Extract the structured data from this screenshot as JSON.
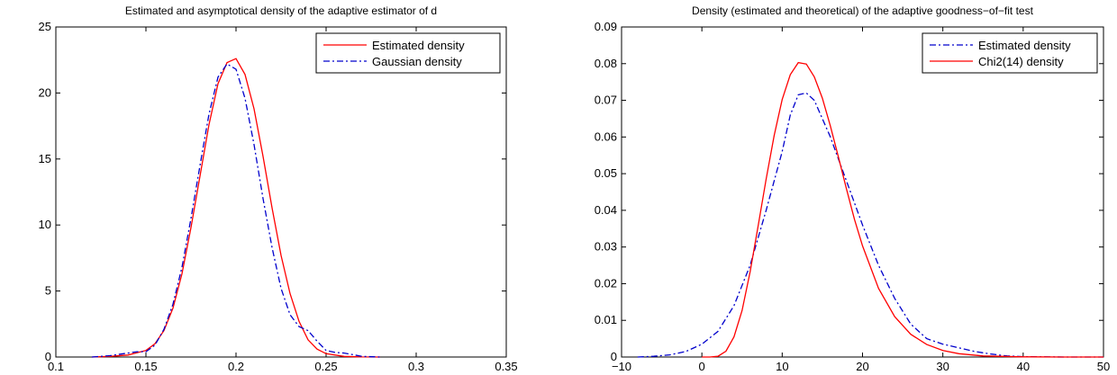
{
  "chart_data": [
    {
      "type": "line",
      "title": "Estimated and asymptotical density of the adaptive estimator of d",
      "xlabel": "",
      "ylabel": "",
      "xlim": [
        0.1,
        0.35
      ],
      "ylim": [
        0,
        25
      ],
      "xticks": [
        0.1,
        0.15,
        0.2,
        0.25,
        0.3,
        0.35
      ],
      "yticks": [
        0,
        5,
        10,
        15,
        20,
        25
      ],
      "xtick_labels": [
        "0.1",
        "0.15",
        "0.2",
        "0.25",
        "0.3",
        "0.35"
      ],
      "ytick_labels": [
        "0",
        "5",
        "10",
        "15",
        "20",
        "25"
      ],
      "grid": false,
      "legend_position": "top-right",
      "series": [
        {
          "name": "Estimated density",
          "color": "#ff0000",
          "dash": "solid",
          "x": [
            0.12,
            0.13,
            0.14,
            0.15,
            0.155,
            0.16,
            0.165,
            0.17,
            0.175,
            0.18,
            0.185,
            0.19,
            0.195,
            0.2,
            0.205,
            0.21,
            0.215,
            0.22,
            0.225,
            0.23,
            0.235,
            0.24,
            0.245,
            0.25,
            0.26,
            0.27,
            0.28
          ],
          "y": [
            0.0,
            0.05,
            0.15,
            0.5,
            1.0,
            2.0,
            3.7,
            6.3,
            9.8,
            13.7,
            17.6,
            20.7,
            22.3,
            22.6,
            21.4,
            18.8,
            15.2,
            11.3,
            7.7,
            4.8,
            2.7,
            1.3,
            0.6,
            0.25,
            0.05,
            0.01,
            0.0
          ]
        },
        {
          "name": "Gaussian density",
          "color": "#0000cc",
          "dash": "dashdot",
          "x": [
            0.12,
            0.13,
            0.14,
            0.145,
            0.15,
            0.155,
            0.16,
            0.165,
            0.17,
            0.175,
            0.18,
            0.185,
            0.19,
            0.195,
            0.2,
            0.205,
            0.21,
            0.215,
            0.22,
            0.225,
            0.23,
            0.235,
            0.24,
            0.245,
            0.25,
            0.255,
            0.26,
            0.27,
            0.28
          ],
          "y": [
            0.0,
            0.1,
            0.3,
            0.4,
            0.4,
            0.9,
            2.1,
            4.0,
            6.8,
            10.5,
            14.5,
            18.4,
            21.2,
            22.2,
            21.8,
            19.6,
            16.1,
            12.0,
            8.3,
            5.2,
            3.2,
            2.3,
            2.0,
            1.2,
            0.5,
            0.35,
            0.3,
            0.05,
            0.0
          ]
        }
      ]
    },
    {
      "type": "line",
      "title": "Density (estimated and theoretical) of the adaptive goodness−of−fit test",
      "xlabel": "",
      "ylabel": "",
      "xlim": [
        -10,
        50
      ],
      "ylim": [
        0,
        0.09
      ],
      "xticks": [
        -10,
        0,
        10,
        20,
        30,
        40,
        50
      ],
      "yticks": [
        0,
        0.01,
        0.02,
        0.03,
        0.04,
        0.05,
        0.06,
        0.07,
        0.08,
        0.09
      ],
      "xtick_labels": [
        "−10",
        "0",
        "10",
        "20",
        "30",
        "40",
        "50"
      ],
      "ytick_labels": [
        "0",
        "0.01",
        "0.02",
        "0.03",
        "0.04",
        "0.05",
        "0.06",
        "0.07",
        "0.08",
        "0.09"
      ],
      "grid": false,
      "legend_position": "top-right",
      "series": [
        {
          "name": "Estimated density",
          "color": "#0000cc",
          "dash": "dashdot",
          "x": [
            -8,
            -6,
            -4,
            -2,
            0,
            2,
            4,
            6,
            8,
            10,
            11,
            12,
            13,
            14,
            16,
            18,
            20,
            22,
            24,
            26,
            28,
            30,
            32,
            34,
            36,
            38,
            40,
            45,
            50
          ],
          "y": [
            0.0,
            0.0002,
            0.0006,
            0.0015,
            0.0035,
            0.007,
            0.014,
            0.025,
            0.04,
            0.056,
            0.066,
            0.0715,
            0.072,
            0.07,
            0.06,
            0.048,
            0.036,
            0.025,
            0.016,
            0.009,
            0.005,
            0.0035,
            0.0025,
            0.0015,
            0.0008,
            0.0003,
            0.0001,
            0.0,
            0.0
          ]
        },
        {
          "name": "Chi2(14) density",
          "color": "#ff0000",
          "dash": "solid",
          "x": [
            0,
            1,
            2,
            3,
            4,
            5,
            6,
            7,
            8,
            9,
            10,
            11,
            12,
            13,
            14,
            15,
            16,
            17,
            18,
            19,
            20,
            22,
            24,
            26,
            28,
            30,
            32,
            35,
            40,
            45,
            50
          ],
          "y": [
            0.0,
            0.0,
            0.0002,
            0.0016,
            0.0055,
            0.0127,
            0.0232,
            0.0357,
            0.0485,
            0.0604,
            0.0702,
            0.077,
            0.0803,
            0.0799,
            0.0764,
            0.0706,
            0.063,
            0.0545,
            0.0458,
            0.0375,
            0.0303,
            0.0187,
            0.011,
            0.0062,
            0.0034,
            0.0018,
            0.0009,
            0.0003,
            4e-05,
            0.0,
            0.0
          ]
        }
      ]
    }
  ]
}
